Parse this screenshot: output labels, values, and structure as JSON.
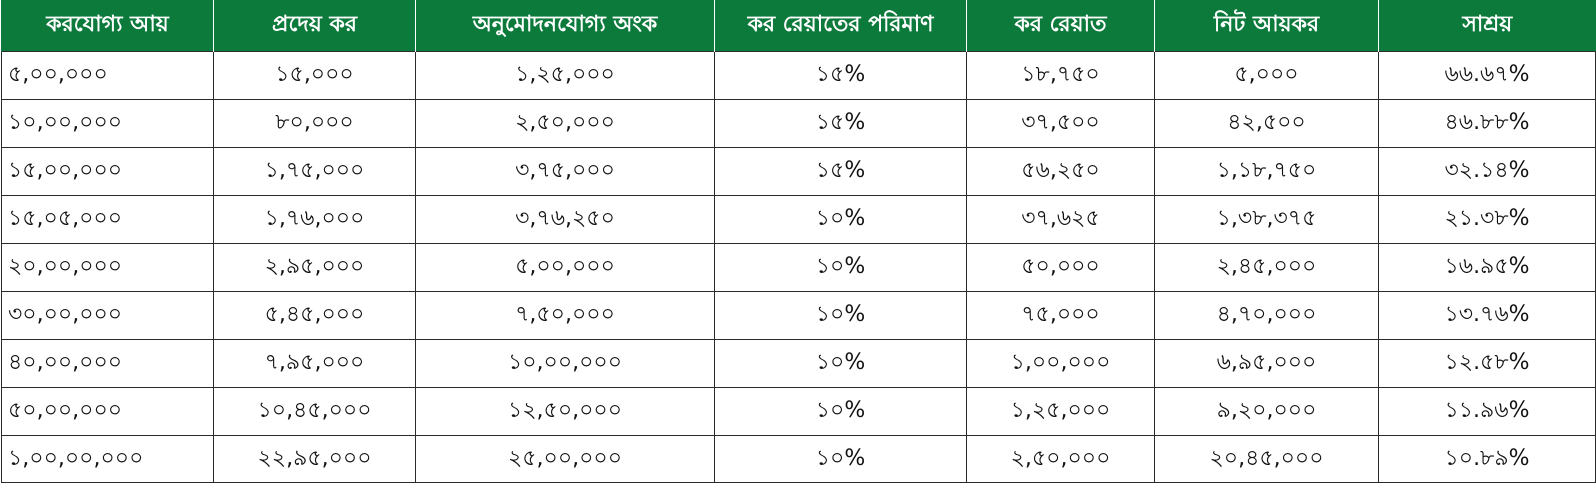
{
  "table": {
    "headers": [
      "করযোগ্য আয়",
      "প্রদেয় কর",
      "অনুমোদনযোগ্য অংক",
      "কর রেয়াতের পরিমাণ",
      "কর রেয়াত",
      "নিট আয়কর",
      "সাশ্রয়"
    ],
    "rows": [
      [
        "৫,০০,০০০",
        "১৫,০০০",
        "১,২৫,০০০",
        "১৫%",
        "১৮,৭৫০",
        "৫,০০০",
        "৬৬.৬৭%"
      ],
      [
        "১০,০০,০০০",
        "৮০,০০০",
        "২,৫০,০০০",
        "১৫%",
        "৩৭,৫০০",
        "৪২,৫০০",
        "৪৬.৮৮%"
      ],
      [
        "১৫,০০,০০০",
        "১,৭৫,০০০",
        "৩,৭৫,০০০",
        "১৫%",
        "৫৬,২৫০",
        "১,১৮,৭৫০",
        "৩২.১৪%"
      ],
      [
        "১৫,০৫,০০০",
        "১,৭৬,০০০",
        "৩,৭৬,২৫০",
        "১০%",
        "৩৭,৬২৫",
        "১,৩৮,৩৭৫",
        "২১.৩৮%"
      ],
      [
        "২০,০০,০০০",
        "২,৯৫,০০০",
        "৫,০০,০০০",
        "১০%",
        "৫০,০০০",
        "২,৪৫,০০০",
        "১৬.৯৫%"
      ],
      [
        "৩০,০০,০০০",
        "৫,৪৫,০০০",
        "৭,৫০,০০০",
        "১০%",
        "৭৫,০০০",
        "৪,৭০,০০০",
        "১৩.৭৬%"
      ],
      [
        "৪০,০০,০০০",
        "৭,৯৫,০০০",
        "১০,০০,০০০",
        "১০%",
        "১,০০,০০০",
        "৬,৯৫,০০০",
        "১২.৫৮%"
      ],
      [
        "৫০,০০,০০০",
        "১০,৪৫,০০০",
        "১২,৫০,০০০",
        "১০%",
        "১,২৫,০০০",
        "৯,২০,০০০",
        "১১.৯৬%"
      ],
      [
        "১,০০,০০,০০০",
        "২২,৯৫,০০০",
        "২৫,০০,০০০",
        "১০%",
        "২,৫০,০০০",
        "২০,৪৫,০০০",
        "১০.৮৯%"
      ]
    ]
  },
  "colors": {
    "header_background": "#0b7a3b",
    "header_text": "#ffffff",
    "border": "#2b2b2b"
  }
}
